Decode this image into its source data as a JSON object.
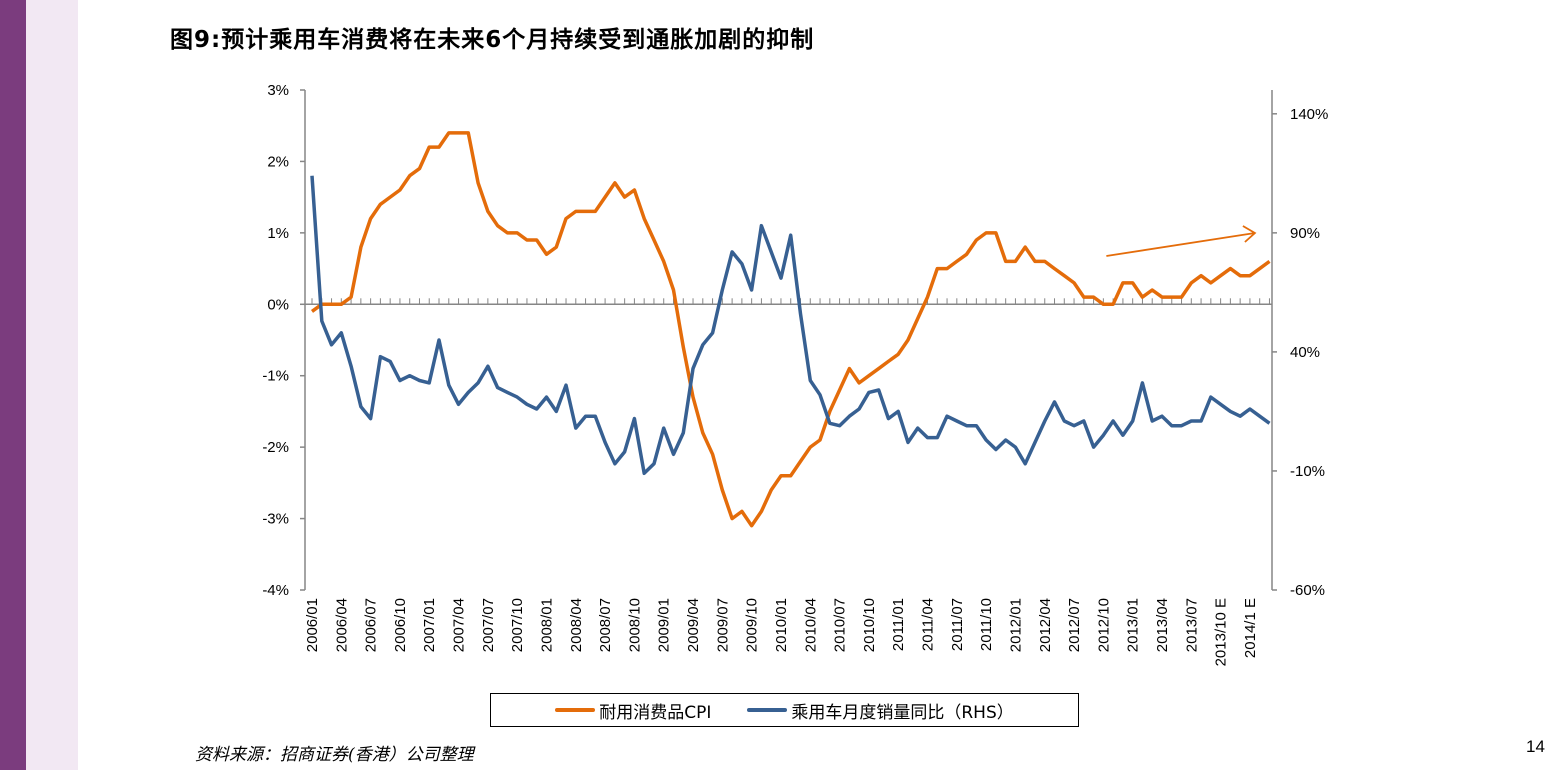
{
  "title": "图9:预计乘用车消费将在未来6个月持续受到通胀加剧的抑制",
  "source": "资料来源：招商证券(香港）公司整理",
  "page_number": "14",
  "colors": {
    "cpi": "#e46c0a",
    "sales": "#376092",
    "axis": "#868686",
    "sidebar_dark": "#7b3c7e",
    "sidebar_light": "#f2e8f3"
  },
  "chart_data": {
    "type": "line",
    "title": "图9:预计乘用车消费将在未来6个月持续受到通胀加剧的抑制",
    "x_start": "2006/01",
    "x_frequency": "monthly",
    "x_tick_labels": [
      "2006/01",
      "2006/04",
      "2006/07",
      "2006/10",
      "2007/01",
      "2007/04",
      "2007/07",
      "2007/10",
      "2008/01",
      "2008/04",
      "2008/07",
      "2008/10",
      "2009/01",
      "2009/04",
      "2009/07",
      "2009/10",
      "2010/01",
      "2010/04",
      "2010/07",
      "2010/10",
      "2011/01",
      "2011/04",
      "2011/07",
      "2011/10",
      "2012/01",
      "2012/04",
      "2012/07",
      "2012/10",
      "2013/01",
      "2013/04",
      "2013/07",
      "2013/10 E",
      "2014/1 E"
    ],
    "y_left": {
      "ticks": [
        "3%",
        "2%",
        "1%",
        "0%",
        "-1%",
        "-2%",
        "-3%",
        "-4%"
      ],
      "range": [
        -4,
        3
      ],
      "unit": "%"
    },
    "y_right": {
      "ticks": [
        "140%",
        "90%",
        "40%",
        "-10%",
        "-60%"
      ],
      "range": [
        -60,
        150
      ],
      "unit": "%"
    },
    "grid": false,
    "legend_placement": "bottom",
    "series": [
      {
        "name": "耐用消费品CPI",
        "axis": "left",
        "color": "#e46c0a",
        "values": [
          -0.1,
          0,
          0,
          0,
          0.1,
          0.8,
          1.2,
          1.4,
          1.5,
          1.6,
          1.8,
          1.9,
          2.2,
          2.2,
          2.4,
          2.4,
          2.4,
          1.7,
          1.3,
          1.1,
          1.0,
          1.0,
          0.9,
          0.9,
          0.7,
          0.8,
          1.2,
          1.3,
          1.3,
          1.3,
          1.5,
          1.7,
          1.5,
          1.6,
          1.2,
          0.9,
          0.6,
          0.2,
          -0.6,
          -1.3,
          -1.8,
          -2.1,
          -2.6,
          -3.0,
          -2.9,
          -3.1,
          -2.9,
          -2.6,
          -2.4,
          -2.4,
          -2.2,
          -2.0,
          -1.9,
          -1.5,
          -1.2,
          -0.9,
          -1.1,
          -1.0,
          -0.9,
          -0.8,
          -0.7,
          -0.5,
          -0.2,
          0.1,
          0.5,
          0.5,
          0.6,
          0.7,
          0.9,
          1.0,
          1.0,
          0.6,
          0.6,
          0.8,
          0.6,
          0.6,
          0.5,
          0.4,
          0.3,
          0.1,
          0.1,
          0,
          0,
          0.3,
          0.3,
          0.1,
          0.2,
          0.1,
          0.1,
          0.1,
          0.3,
          0.4,
          0.3,
          0.4,
          0.5,
          0.4,
          0.4,
          0.5,
          0.6
        ]
      },
      {
        "name": "乘用车月度销量同比（RHS）",
        "axis": "right",
        "color": "#376092",
        "values": [
          114,
          53,
          43,
          48,
          34,
          17,
          12,
          38,
          36,
          28,
          30,
          28,
          27,
          45,
          26,
          18,
          23,
          27,
          34,
          25,
          23,
          21,
          18,
          16,
          21,
          15,
          26,
          8,
          13,
          13,
          2,
          -7,
          -2,
          12,
          -11,
          -7,
          8,
          -3,
          6,
          33,
          43,
          48,
          66,
          82,
          77,
          66,
          93,
          82,
          71,
          89,
          56,
          28,
          22,
          10,
          9,
          13,
          16,
          23,
          24,
          12,
          15,
          2,
          8,
          4,
          4,
          13,
          11,
          9,
          9,
          3,
          -1,
          3,
          0,
          -7,
          2,
          11,
          19,
          11,
          9,
          11,
          0,
          5,
          11,
          5,
          11,
          27,
          11,
          13,
          9,
          9,
          11,
          11,
          21,
          18,
          15,
          13,
          16,
          13,
          10
        ]
      }
    ],
    "annotations": [
      {
        "type": "arrow",
        "color": "#e46c0a",
        "direction": "up-right",
        "from_month": "2012/10",
        "to_month": "2014/1 E"
      }
    ]
  }
}
